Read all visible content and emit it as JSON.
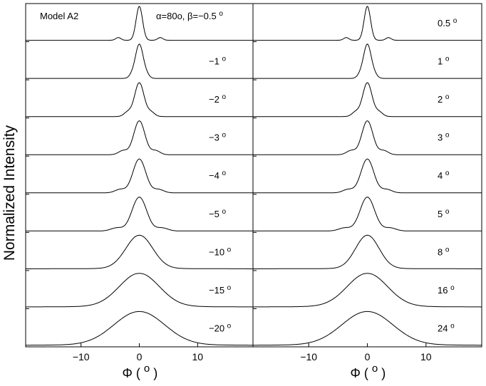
{
  "ylabel": "Normalized Intensity",
  "model_label": "Model A2",
  "chart_data": [
    {
      "type": "line",
      "panel": "left",
      "xlabel": "Φ ( o )",
      "x_ticks": [
        "−10",
        "0",
        "10"
      ],
      "xlim": [
        -19.5,
        19.5
      ],
      "header_annotation": "α=80o, β=−0.5 o",
      "series": [
        {
          "label": "",
          "width": 0.55,
          "wing": 0.0,
          "sidelobe": 0.08,
          "side_pos": 3.6
        },
        {
          "label": "−1 o",
          "width": 0.65,
          "wing": 0.0,
          "sidelobe": 0.1,
          "side_pos": 1.2
        },
        {
          "label": "−2 o",
          "width": 0.8,
          "wing": 0.0,
          "sidelobe": 0.13,
          "side_pos": 2.0
        },
        {
          "label": "−3 o",
          "width": 0.95,
          "wing": 0.0,
          "sidelobe": 0.12,
          "side_pos": 2.8
        },
        {
          "label": "−4 o",
          "width": 1.1,
          "wing": 0.0,
          "sidelobe": 0.1,
          "side_pos": 3.3
        },
        {
          "label": "−5 o",
          "width": 1.25,
          "wing": 0.0,
          "sidelobe": 0.09,
          "side_pos": 3.9
        },
        {
          "label": "−10 o",
          "width": 2.3,
          "wing": 0.05,
          "sidelobe": 0.0,
          "side_pos": 0
        },
        {
          "label": "−15 o",
          "width": 3.4,
          "wing": 0.06,
          "sidelobe": 0.0,
          "side_pos": 0
        },
        {
          "label": "−20 o",
          "width": 4.3,
          "wing": 0.04,
          "sidelobe": 0.0,
          "side_pos": 0
        }
      ]
    },
    {
      "type": "line",
      "panel": "right",
      "xlabel": "Φ ( o )",
      "x_ticks": [
        "−10",
        "0",
        "10"
      ],
      "xlim": [
        -19.5,
        19.5
      ],
      "series": [
        {
          "label": "0.5 o",
          "width": 0.55,
          "wing": 0.0,
          "sidelobe": 0.08,
          "side_pos": 3.6
        },
        {
          "label": "1 o",
          "width": 0.65,
          "wing": 0.0,
          "sidelobe": 0.1,
          "side_pos": 1.2
        },
        {
          "label": "2 o",
          "width": 0.8,
          "wing": 0.0,
          "sidelobe": 0.13,
          "side_pos": 2.0
        },
        {
          "label": "3 o",
          "width": 0.95,
          "wing": 0.0,
          "sidelobe": 0.12,
          "side_pos": 2.8
        },
        {
          "label": "4 o",
          "width": 1.1,
          "wing": 0.0,
          "sidelobe": 0.1,
          "side_pos": 3.3
        },
        {
          "label": "5 o",
          "width": 1.25,
          "wing": 0.0,
          "sidelobe": 0.09,
          "side_pos": 3.9
        },
        {
          "label": "8 o",
          "width": 2.0,
          "wing": 0.05,
          "sidelobe": 0.0,
          "side_pos": 0
        },
        {
          "label": "16 o",
          "width": 3.4,
          "wing": 0.06,
          "sidelobe": 0.0,
          "side_pos": 0
        },
        {
          "label": "24 o",
          "width": 4.3,
          "wing": 0.04,
          "sidelobe": 0.0,
          "side_pos": 0
        }
      ]
    }
  ]
}
